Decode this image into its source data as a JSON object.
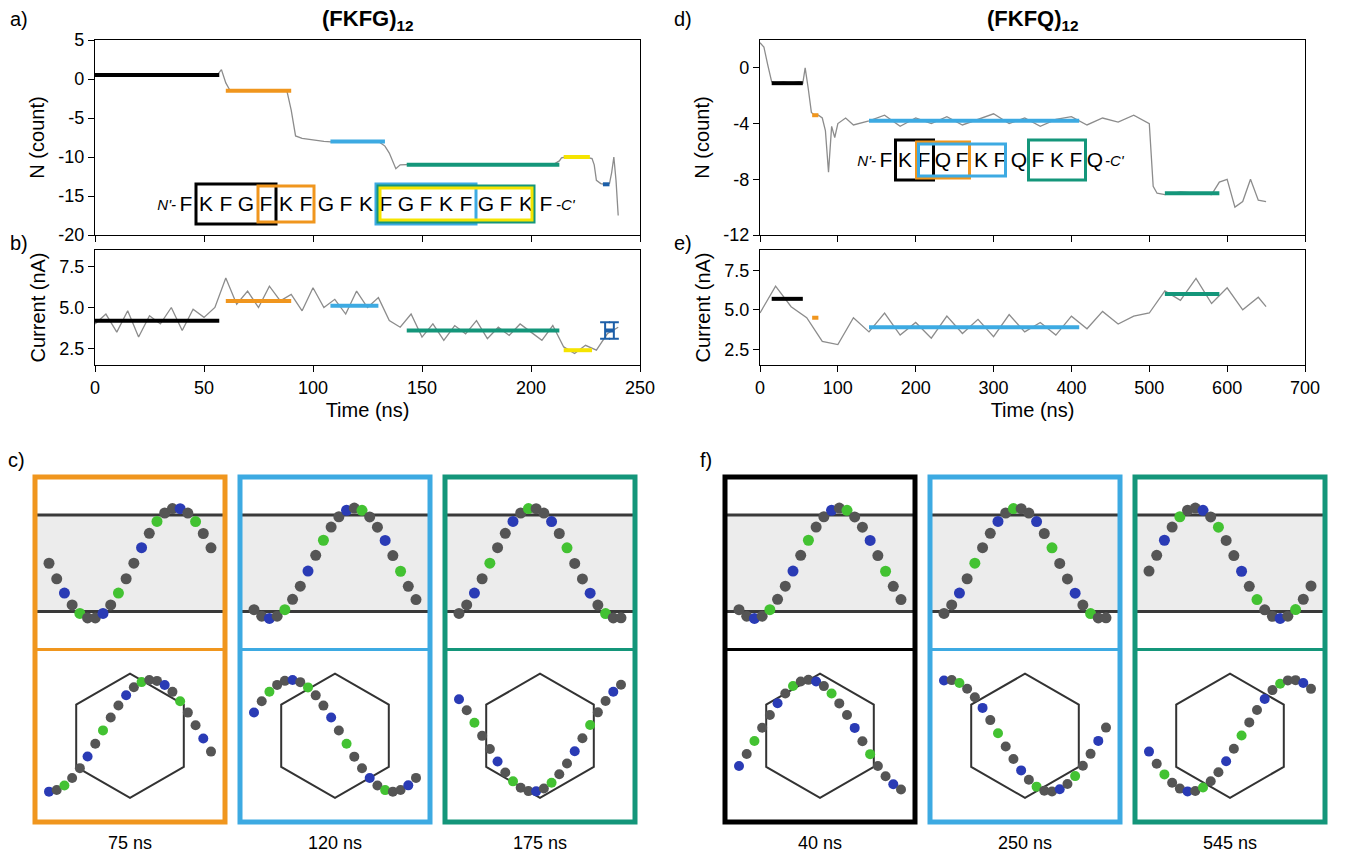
{
  "columns": [
    {
      "title": "(FKFG)",
      "title_subscript": "12",
      "sequence": {
        "prefix": "N'-",
        "residues": [
          "F",
          "K",
          "F",
          "G",
          "F",
          "K",
          "F",
          "G",
          "F",
          "K",
          "F",
          "G",
          "F",
          "K",
          "F",
          "G",
          "F",
          "K",
          "F"
        ],
        "suffix": "-C'",
        "boxes": [
          {
            "color": "#000000",
            "from": 1,
            "to": 4
          },
          {
            "color": "#f0961e",
            "from": 4,
            "to": 6
          },
          {
            "color": "#3daae2",
            "from": 10,
            "to": 14
          },
          {
            "color": "#14967a",
            "from": 10,
            "to": 17
          },
          {
            "color": "#f5e400",
            "from": 10,
            "to": 17
          }
        ]
      },
      "snapshots": {
        "panel": "c)",
        "frames": [
          {
            "label": "75 ns",
            "color": "#f0961e"
          },
          {
            "label": "120 ns",
            "color": "#3daae2"
          },
          {
            "label": "175 ns",
            "color": "#14967a"
          }
        ]
      }
    },
    {
      "title": "(FKFQ)",
      "title_subscript": "12",
      "sequence": {
        "prefix": "N'-",
        "residues": [
          "F",
          "K",
          "F",
          "Q",
          "F",
          "K",
          "F",
          "Q",
          "F",
          "K",
          "F",
          "Q"
        ],
        "suffix": "-C'",
        "boxes": [
          {
            "color": "#000000",
            "from": 1,
            "to": 2
          },
          {
            "color": "#f0961e",
            "from": 2,
            "to": 4
          },
          {
            "color": "#3daae2",
            "from": 2,
            "to": 6
          },
          {
            "color": "#14967a",
            "from": 8,
            "to": 10
          }
        ]
      },
      "snapshots": {
        "panel": "f)",
        "frames": [
          {
            "label": "40 ns",
            "color": "#000000"
          },
          {
            "label": "250 ns",
            "color": "#3daae2"
          },
          {
            "label": "545 ns",
            "color": "#14967a"
          }
        ]
      }
    }
  ],
  "chart_data": [
    {
      "panel": "a)",
      "type": "line",
      "ylabel": "N (count)",
      "xlim": [
        0,
        250
      ],
      "ylim": [
        -20,
        5
      ],
      "xticks": [
        0,
        50,
        100,
        150,
        200,
        250
      ],
      "yticks": [
        -20,
        -15,
        -10,
        -5,
        0,
        5
      ],
      "tick_labels": "y",
      "grid": false,
      "series": [
        {
          "type": "line",
          "color": "#8c8c8c",
          "x": [
            0,
            10,
            20,
            30,
            40,
            50,
            56,
            58,
            60,
            62,
            70,
            80,
            88,
            90,
            92,
            95,
            100,
            105,
            110,
            115,
            120,
            125,
            130,
            133,
            135,
            138,
            140,
            150,
            160,
            170,
            180,
            190,
            200,
            210,
            213,
            214,
            216,
            220,
            225,
            228,
            229,
            230,
            232,
            234,
            236,
            237,
            238,
            239,
            240
          ],
          "values": [
            0.5,
            0.4,
            0.5,
            0.4,
            0.5,
            0.5,
            0.5,
            1.2,
            -0.5,
            -1.5,
            -1.4,
            -1.5,
            -1.5,
            -4,
            -7.3,
            -7.6,
            -7.8,
            -8.0,
            -8.1,
            -7.9,
            -8.0,
            -8.1,
            -8.0,
            -8.6,
            -9.5,
            -11.5,
            -11,
            -10.9,
            -11,
            -11,
            -10.9,
            -11,
            -11,
            -11,
            -10.5,
            -10.1,
            -10,
            -10,
            -10,
            -10.2,
            -11,
            -13,
            -13.4,
            -13.5,
            -13.4,
            -12,
            -10,
            -13,
            -17.5
          ]
        },
        {
          "type": "segment",
          "color": "#000000",
          "x": [
            0,
            57
          ],
          "values": [
            0.5,
            0.5
          ]
        },
        {
          "type": "segment",
          "color": "#f0961e",
          "x": [
            60,
            90
          ],
          "values": [
            -1.5,
            -1.5
          ]
        },
        {
          "type": "segment",
          "color": "#3daae2",
          "x": [
            108,
            133
          ],
          "values": [
            -8,
            -8
          ]
        },
        {
          "type": "segment",
          "color": "#14967a",
          "x": [
            143,
            213
          ],
          "values": [
            -11,
            -11
          ]
        },
        {
          "type": "segment",
          "color": "#f5e400",
          "x": [
            215,
            227
          ],
          "values": [
            -10,
            -10
          ]
        },
        {
          "type": "segment",
          "color": "#1d5fa8",
          "x": [
            233,
            236
          ],
          "values": [
            -13.5,
            -13.5
          ]
        }
      ]
    },
    {
      "panel": "b)",
      "type": "line",
      "xlabel": "Time (ns)",
      "ylabel": "Current (nA)",
      "xlim": [
        0,
        250
      ],
      "ylim": [
        1.5,
        8.5
      ],
      "xticks": [
        0,
        50,
        100,
        150,
        200,
        250
      ],
      "yticks": [
        2.5,
        {
          "value": 5,
          "label": "5.0"
        },
        7.5
      ],
      "grid": false,
      "series": [
        {
          "type": "line",
          "color": "#8c8c8c",
          "x": [
            0,
            5,
            10,
            15,
            20,
            25,
            30,
            35,
            40,
            45,
            50,
            55,
            60,
            65,
            70,
            75,
            80,
            85,
            90,
            95,
            100,
            105,
            110,
            115,
            120,
            125,
            130,
            135,
            140,
            145,
            150,
            155,
            160,
            165,
            170,
            175,
            180,
            185,
            190,
            195,
            200,
            205,
            210,
            215,
            220,
            225,
            230,
            235,
            240
          ],
          "values": [
            4.0,
            4.6,
            3.5,
            4.8,
            3.2,
            4.5,
            4.0,
            5.0,
            3.6,
            4.9,
            4.4,
            5.0,
            6.8,
            5.2,
            6.0,
            5.0,
            6.3,
            5.4,
            5.8,
            4.8,
            6.2,
            5.0,
            5.5,
            4.6,
            6.0,
            5.0,
            5.6,
            4.2,
            3.8,
            4.6,
            3.2,
            4.0,
            3.0,
            3.9,
            3.4,
            4.2,
            3.1,
            3.8,
            3.3,
            4.0,
            3.5,
            3.0,
            3.9,
            2.6,
            2.2,
            2.7,
            2.4,
            3.4,
            3.8
          ]
        },
        {
          "type": "segment",
          "color": "#000000",
          "x": [
            0,
            57
          ],
          "values": [
            4.2,
            4.2
          ]
        },
        {
          "type": "segment",
          "color": "#f0961e",
          "x": [
            60,
            90
          ],
          "values": [
            5.4,
            5.4
          ]
        },
        {
          "type": "segment",
          "color": "#3daae2",
          "x": [
            108,
            130
          ],
          "values": [
            5.1,
            5.1
          ]
        },
        {
          "type": "segment",
          "color": "#14967a",
          "x": [
            143,
            213
          ],
          "values": [
            3.6,
            3.6
          ]
        },
        {
          "type": "segment",
          "color": "#f5e400",
          "x": [
            215,
            228
          ],
          "values": [
            2.4,
            2.4
          ]
        },
        {
          "type": "segment",
          "color": "#1d5fa8",
          "x": [
            234,
            238
          ],
          "values": [
            3.6,
            3.6
          ],
          "error": [
            0.5,
            0.5
          ]
        }
      ]
    },
    {
      "panel": "d)",
      "type": "line",
      "ylabel": "N (count)",
      "xlim": [
        0,
        700
      ],
      "ylim": [
        -12,
        2
      ],
      "xticks": [
        0,
        100,
        200,
        300,
        400,
        500,
        600,
        700
      ],
      "yticks": [
        -12,
        -8,
        -4,
        0
      ],
      "tick_labels": "y",
      "grid": false,
      "series": [
        {
          "type": "line",
          "color": "#8c8c8c",
          "x": [
            0,
            5,
            10,
            15,
            20,
            30,
            40,
            50,
            55,
            58,
            62,
            66,
            70,
            75,
            80,
            84,
            88,
            92,
            96,
            100,
            110,
            120,
            140,
            160,
            180,
            200,
            220,
            240,
            260,
            280,
            300,
            320,
            340,
            360,
            380,
            400,
            420,
            440,
            460,
            480,
            500,
            505,
            510,
            520,
            540,
            560,
            580,
            590,
            600,
            610,
            620,
            630,
            640,
            650
          ],
          "values": [
            1.8,
            1.5,
            0.2,
            -1,
            -1.1,
            -1,
            -1.1,
            -1,
            -1.1,
            0,
            -1.5,
            -3.2,
            -3.4,
            -3.4,
            -3.6,
            -4.5,
            -7.5,
            -4.2,
            -5,
            -4,
            -3.6,
            -4.1,
            -3.8,
            -3.4,
            -4.2,
            -3.6,
            -4,
            -3.5,
            -4.1,
            -3.7,
            -3.3,
            -4,
            -3.6,
            -4.2,
            -3.7,
            -3.5,
            -4.1,
            -3.6,
            -3.9,
            -3.4,
            -4,
            -8.5,
            -9,
            -9.1,
            -8.9,
            -9,
            -9.1,
            -8.2,
            -8,
            -10,
            -9.6,
            -8,
            -9.5,
            -9.6
          ]
        },
        {
          "type": "segment",
          "color": "#000000",
          "x": [
            15,
            55
          ],
          "values": [
            -1.1,
            -1.1
          ]
        },
        {
          "type": "segment",
          "color": "#f0961e",
          "x": [
            67,
            75
          ],
          "values": [
            -3.4,
            -3.4
          ]
        },
        {
          "type": "segment",
          "color": "#3daae2",
          "x": [
            140,
            410
          ],
          "values": [
            -3.8,
            -3.8
          ]
        },
        {
          "type": "segment",
          "color": "#14967a",
          "x": [
            520,
            590
          ],
          "values": [
            -9,
            -9
          ]
        }
      ]
    },
    {
      "panel": "e)",
      "type": "line",
      "xlabel": "Time (ns)",
      "ylabel": "Current (nA)",
      "xlim": [
        0,
        700
      ],
      "ylim": [
        1.5,
        8.8
      ],
      "xticks": [
        0,
        100,
        200,
        300,
        400,
        500,
        600,
        700
      ],
      "yticks": [
        2.5,
        {
          "value": 5,
          "label": "5.0"
        },
        7.5
      ],
      "grid": false,
      "series": [
        {
          "type": "line",
          "color": "#8c8c8c",
          "x": [
            0,
            20,
            40,
            60,
            80,
            100,
            120,
            140,
            160,
            180,
            200,
            220,
            240,
            260,
            280,
            300,
            320,
            340,
            360,
            380,
            400,
            420,
            440,
            460,
            480,
            500,
            520,
            540,
            560,
            580,
            600,
            620,
            640,
            650
          ],
          "values": [
            4.8,
            6.5,
            5.2,
            4.5,
            3.0,
            2.8,
            4.5,
            3.6,
            4.8,
            3.4,
            4.2,
            3.2,
            4.6,
            3.5,
            4.4,
            3.3,
            4.7,
            3.6,
            4.2,
            3.4,
            4.6,
            3.8,
            4.9,
            4.1,
            4.6,
            4.8,
            6.2,
            5.6,
            7.0,
            5.4,
            6.4,
            5.0,
            5.8,
            5.2
          ]
        },
        {
          "type": "segment",
          "color": "#000000",
          "x": [
            15,
            55
          ],
          "values": [
            5.7,
            5.7
          ]
        },
        {
          "type": "segment",
          "color": "#f0961e",
          "x": [
            67,
            75
          ],
          "values": [
            4.5,
            4.5
          ]
        },
        {
          "type": "segment",
          "color": "#3daae2",
          "x": [
            140,
            410
          ],
          "values": [
            3.9,
            3.9
          ]
        },
        {
          "type": "segment",
          "color": "#14967a",
          "x": [
            520,
            590
          ],
          "values": [
            6.0,
            6.0
          ]
        }
      ]
    }
  ]
}
